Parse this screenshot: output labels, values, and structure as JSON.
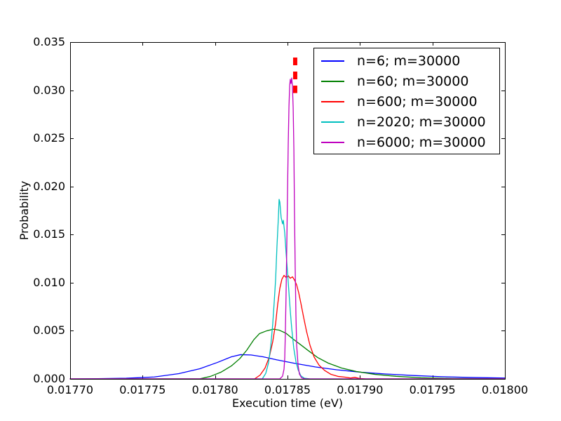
{
  "chart_data": {
    "type": "line",
    "title": "",
    "xlabel": "Execution time (eV)",
    "ylabel": "Probability",
    "xlim": [
      0.0177,
      0.018
    ],
    "ylim": [
      0.0,
      0.035
    ],
    "grid": false,
    "legend_position": "upper right",
    "x_ticks": {
      "values": [
        0.0177,
        0.01775,
        0.0178,
        0.01785,
        0.0179,
        0.01795,
        0.018
      ],
      "labels": [
        "0.01770",
        "0.01775",
        "0.01780",
        "0.01785",
        "0.01790",
        "0.01795",
        "0.01800"
      ]
    },
    "y_ticks": {
      "values": [
        0.0,
        0.005,
        0.01,
        0.015,
        0.02,
        0.025,
        0.03,
        0.035
      ],
      "labels": [
        "0.000",
        "0.005",
        "0.010",
        "0.015",
        "0.020",
        "0.025",
        "0.030",
        "0.035"
      ]
    },
    "series": [
      {
        "name": "n=6; m=30000",
        "color": "#0000ff",
        "points": [
          [
            0.0177,
            0.0
          ],
          [
            0.0177194,
            3e-05
          ],
          [
            0.0177387,
            7e-05
          ],
          [
            0.0177581,
            0.0002
          ],
          [
            0.017775,
            0.00055
          ],
          [
            0.0177895,
            0.00106
          ],
          [
            0.0178016,
            0.00171
          ],
          [
            0.0178113,
            0.0023
          ],
          [
            0.0178176,
            0.00252
          ],
          [
            0.0178248,
            0.00249
          ],
          [
            0.0178331,
            0.0023
          ],
          [
            0.0178427,
            0.00198
          ],
          [
            0.0178548,
            0.00162
          ],
          [
            0.0178694,
            0.00124
          ],
          [
            0.0178839,
            0.00095
          ],
          [
            0.0179008,
            0.00069
          ],
          [
            0.0179177,
            0.00051
          ],
          [
            0.0179371,
            0.00035
          ],
          [
            0.0179565,
            0.00023
          ],
          [
            0.0179758,
            0.00015
          ],
          [
            0.018,
            9e-05
          ]
        ]
      },
      {
        "name": "n=60; m=30000",
        "color": "#007f00",
        "points": [
          [
            0.0177,
            0.0
          ],
          [
            0.0177895,
            1e-05
          ],
          [
            0.0177968,
            0.00026
          ],
          [
            0.017804,
            0.00069
          ],
          [
            0.0178113,
            0.00135
          ],
          [
            0.0178171,
            0.00211
          ],
          [
            0.0178219,
            0.00299
          ],
          [
            0.0178268,
            0.00408
          ],
          [
            0.0178306,
            0.0047
          ],
          [
            0.0178355,
            0.00499
          ],
          [
            0.0178403,
            0.00517
          ],
          [
            0.0178442,
            0.00507
          ],
          [
            0.017849,
            0.00474
          ],
          [
            0.0178534,
            0.00419
          ],
          [
            0.0178582,
            0.00365
          ],
          [
            0.0178645,
            0.00292
          ],
          [
            0.0178708,
            0.00222
          ],
          [
            0.0178781,
            0.00164
          ],
          [
            0.0178873,
            0.00113
          ],
          [
            0.0178974,
            0.00077
          ],
          [
            0.0179105,
            0.00047
          ],
          [
            0.017925,
            0.00027
          ],
          [
            0.0179419,
            0.00012
          ],
          [
            0.0179637,
            4e-05
          ],
          [
            0.018,
            1e-05
          ]
        ]
      },
      {
        "name": "n=600; m=30000",
        "color": "#ff0000",
        "points": [
          [
            0.0177,
            0.0
          ],
          [
            0.0178273,
            0.0
          ],
          [
            0.0178311,
            0.0004
          ],
          [
            0.0178345,
            0.00113
          ],
          [
            0.0178374,
            0.00226
          ],
          [
            0.0178398,
            0.00386
          ],
          [
            0.0178418,
            0.00576
          ],
          [
            0.0178432,
            0.00773
          ],
          [
            0.0178447,
            0.00941
          ],
          [
            0.0178461,
            0.01035
          ],
          [
            0.0178476,
            0.01076
          ],
          [
            0.017849,
            0.01054
          ],
          [
            0.0178505,
            0.01072
          ],
          [
            0.0178519,
            0.01046
          ],
          [
            0.0178534,
            0.01061
          ],
          [
            0.0178548,
            0.01028
          ],
          [
            0.0178563,
            0.00977
          ],
          [
            0.0178577,
            0.00897
          ],
          [
            0.0178592,
            0.00788
          ],
          [
            0.0178611,
            0.00642
          ],
          [
            0.0178631,
            0.00496
          ],
          [
            0.0178655,
            0.0035
          ],
          [
            0.0178684,
            0.00226
          ],
          [
            0.0178718,
            0.00142
          ],
          [
            0.0178756,
            0.00088
          ],
          [
            0.01788,
            0.00047
          ],
          [
            0.0178848,
            0.00026
          ],
          [
            0.0178897,
            0.00018
          ],
          [
            0.0178935,
            9e-05
          ],
          [
            0.0178964,
            0.00016
          ],
          [
            0.0178998,
            4e-05
          ],
          [
            0.0179042,
            0.0
          ],
          [
            0.018,
            0.0
          ]
        ]
      },
      {
        "name": "n=2020; m=30000",
        "color": "#00bfbf",
        "points": [
          [
            0.0177,
            0.0
          ],
          [
            0.0178326,
            0.0
          ],
          [
            0.017835,
            0.00058
          ],
          [
            0.0178369,
            0.00168
          ],
          [
            0.0178384,
            0.00335
          ],
          [
            0.0178398,
            0.00569
          ],
          [
            0.0178408,
            0.00795
          ],
          [
            0.0178418,
            0.01035
          ],
          [
            0.0178427,
            0.01371
          ],
          [
            0.0178437,
            0.01677
          ],
          [
            0.0178442,
            0.01866
          ],
          [
            0.0178447,
            0.01837
          ],
          [
            0.0178456,
            0.01677
          ],
          [
            0.0178466,
            0.01611
          ],
          [
            0.0178471,
            0.01648
          ],
          [
            0.0178481,
            0.01516
          ],
          [
            0.017849,
            0.01313
          ],
          [
            0.01785,
            0.01108
          ],
          [
            0.017851,
            0.00897
          ],
          [
            0.0178519,
            0.00707
          ],
          [
            0.0178529,
            0.00525
          ],
          [
            0.0178543,
            0.00321
          ],
          [
            0.0178558,
            0.00182
          ],
          [
            0.0178573,
            0.00095
          ],
          [
            0.0178592,
            0.00033
          ],
          [
            0.0178616,
            7e-05
          ],
          [
            0.0178655,
            0.0
          ],
          [
            0.018,
            0.0
          ]
        ]
      },
      {
        "name": "n=6000; m=30000",
        "color": "#bf00bf",
        "points": [
          [
            0.0177,
            0.0
          ],
          [
            0.0178447,
            0.0
          ],
          [
            0.0178466,
            0.00029
          ],
          [
            0.0178476,
            0.00102
          ],
          [
            0.0178481,
            0.00219
          ],
          [
            0.0178485,
            0.00474
          ],
          [
            0.017849,
            0.00875
          ],
          [
            0.0178495,
            0.01385
          ],
          [
            0.01785,
            0.01932
          ],
          [
            0.0178505,
            0.02442
          ],
          [
            0.017851,
            0.02828
          ],
          [
            0.0178515,
            0.03047
          ],
          [
            0.0178519,
            0.03113
          ],
          [
            0.0178524,
            0.03069
          ],
          [
            0.0178529,
            0.03127
          ],
          [
            0.0178534,
            0.0304
          ],
          [
            0.0178539,
            0.02821
          ],
          [
            0.0178544,
            0.02384
          ],
          [
            0.0178548,
            0.0175
          ],
          [
            0.0178553,
            0.01152
          ],
          [
            0.0178558,
            0.00671
          ],
          [
            0.0178563,
            0.0035
          ],
          [
            0.0178573,
            0.00139
          ],
          [
            0.0178582,
            0.00051
          ],
          [
            0.0178597,
            0.00011
          ],
          [
            0.0178621,
            0.0
          ],
          [
            0.018,
            0.0
          ]
        ]
      }
    ],
    "annotations": [
      {
        "type": "vline",
        "style": "dashed",
        "color": "#ff0000",
        "x": 0.0178553,
        "y_start": 0.0297,
        "y_end": 0.0334
      }
    ]
  }
}
